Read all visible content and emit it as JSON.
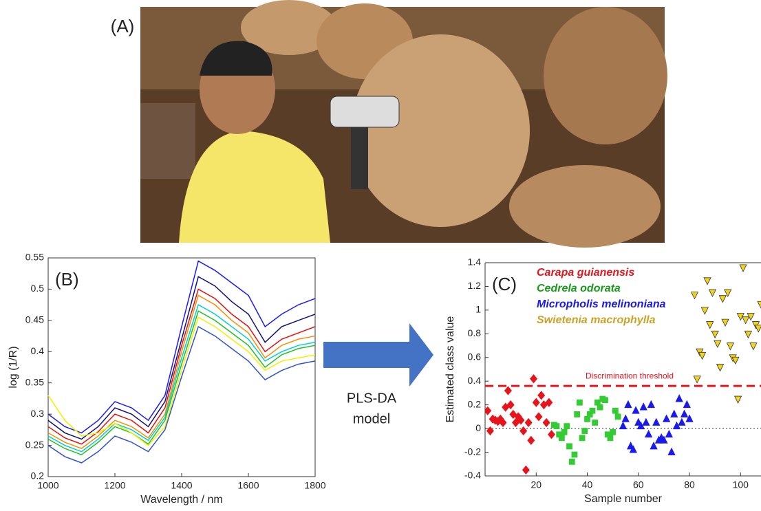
{
  "photo": {
    "label": "(A)"
  },
  "arrow": {
    "label": [
      "PLS-DA",
      "model"
    ]
  },
  "chart_data": [
    {
      "type": "line",
      "panel_label": "(B)",
      "x_label": "Wavelength / nm",
      "y_label": "log (1/R)",
      "x": [
        1000,
        1050,
        1100,
        1150,
        1200,
        1250,
        1300,
        1350,
        1400,
        1450,
        1500,
        1550,
        1600,
        1650,
        1700,
        1750,
        1800
      ],
      "xlim": [
        1000,
        1800
      ],
      "xticks": [
        1000,
        1200,
        1400,
        1600,
        1800
      ],
      "ylim": [
        0.2,
        0.55
      ],
      "yticks": [
        0.2,
        0.25,
        0.3,
        0.35,
        0.4,
        0.45,
        0.5,
        0.55
      ],
      "series": [
        {
          "color": "#1a1aff",
          "values": [
            0.3,
            0.28,
            0.27,
            0.29,
            0.32,
            0.31,
            0.29,
            0.33,
            0.44,
            0.545,
            0.53,
            0.51,
            0.49,
            0.44,
            0.46,
            0.475,
            0.485
          ]
        },
        {
          "color": "#10107a",
          "values": [
            0.29,
            0.27,
            0.26,
            0.28,
            0.31,
            0.3,
            0.28,
            0.32,
            0.42,
            0.52,
            0.505,
            0.48,
            0.46,
            0.415,
            0.44,
            0.45,
            0.46
          ]
        },
        {
          "color": "#e01010",
          "values": [
            0.28,
            0.262,
            0.252,
            0.272,
            0.3,
            0.29,
            0.27,
            0.31,
            0.41,
            0.5,
            0.485,
            0.46,
            0.44,
            0.4,
            0.42,
            0.43,
            0.44
          ]
        },
        {
          "color": "#ff8c00",
          "values": [
            0.27,
            0.255,
            0.245,
            0.265,
            0.29,
            0.28,
            0.262,
            0.3,
            0.4,
            0.49,
            0.475,
            0.45,
            0.43,
            0.39,
            0.41,
            0.42,
            0.425
          ]
        },
        {
          "color": "#00d0d0",
          "values": [
            0.265,
            0.25,
            0.24,
            0.26,
            0.285,
            0.275,
            0.258,
            0.295,
            0.39,
            0.475,
            0.46,
            0.44,
            0.42,
            0.385,
            0.4,
            0.41,
            0.415
          ]
        },
        {
          "color": "#22c022",
          "values": [
            0.26,
            0.245,
            0.235,
            0.255,
            0.28,
            0.27,
            0.252,
            0.29,
            0.38,
            0.465,
            0.45,
            0.43,
            0.41,
            0.375,
            0.395,
            0.405,
            0.41
          ]
        },
        {
          "color": "#f0f000",
          "values": [
            0.33,
            0.29,
            0.265,
            0.27,
            0.285,
            0.27,
            0.25,
            0.28,
            0.37,
            0.455,
            0.44,
            0.42,
            0.4,
            0.37,
            0.385,
            0.39,
            0.395
          ]
        },
        {
          "color": "#3050d0",
          "values": [
            0.25,
            0.232,
            0.222,
            0.24,
            0.265,
            0.255,
            0.24,
            0.275,
            0.36,
            0.44,
            0.425,
            0.405,
            0.385,
            0.355,
            0.37,
            0.38,
            0.385
          ]
        }
      ]
    },
    {
      "type": "scatter",
      "panel_label": "(C)",
      "x_label": "Sample number",
      "y_label": "Estimated class value",
      "xlim": [
        0,
        108
      ],
      "xticks": [
        20,
        40,
        60,
        80,
        100
      ],
      "ylim": [
        -0.4,
        1.4
      ],
      "yticks": [
        -0.4,
        -0.2,
        0,
        0.2,
        0.4,
        0.6,
        0.8,
        1,
        1.2,
        1.4
      ],
      "threshold": {
        "value": 0.36,
        "label": "Discrimination threshold",
        "color": "#e8141c"
      },
      "zero_line": 0,
      "series": [
        {
          "name": "Carapa guianensis",
          "color": "#e8141c",
          "label_color": "#e8141c",
          "marker": "diamond",
          "x": [
            1,
            2,
            3,
            4,
            5,
            6,
            7,
            8,
            9,
            10,
            11,
            12,
            13,
            14,
            15,
            16,
            17,
            18,
            19,
            20,
            21,
            22,
            23,
            24,
            25,
            26
          ],
          "values": [
            0.15,
            -0.02,
            0.08,
            0.07,
            0.06,
            0.08,
            0.05,
            0.18,
            0.32,
            0.2,
            0.12,
            0.05,
            0.1,
            0.07,
            -0.02,
            -0.35,
            0.05,
            -0.1,
            0.42,
            0.22,
            0.1,
            0.28,
            0.2,
            0.05,
            0.22,
            -0.05
          ]
        },
        {
          "name": "Cedrela odorata",
          "color": "#33cc33",
          "label_color": "#1a9a1a",
          "marker": "square",
          "x": [
            27,
            28,
            29,
            30,
            31,
            32,
            33,
            34,
            35,
            36,
            37,
            38,
            39,
            40,
            41,
            42,
            43,
            44,
            45,
            46,
            47,
            48,
            49,
            50,
            51,
            52
          ],
          "values": [
            0.03,
            0.02,
            -0.05,
            -0.08,
            -0.03,
            0.02,
            -0.15,
            -0.28,
            -0.22,
            0.12,
            0.22,
            -0.08,
            -0.02,
            0.08,
            0.12,
            0.15,
            0.05,
            0.22,
            0.18,
            0.25,
            0.24,
            -0.05,
            -0.08,
            -0.03,
            0.15,
            0.1
          ]
        },
        {
          "name": "Micropholis melinoniana",
          "color": "#1a1aee",
          "label_color": "#1a1aee",
          "marker": "triangle",
          "x": [
            54,
            55,
            56,
            57,
            58,
            59,
            60,
            61,
            62,
            63,
            64,
            65,
            66,
            67,
            68,
            69,
            70,
            71,
            72,
            73,
            74,
            75,
            76,
            77,
            78,
            79,
            80
          ],
          "values": [
            0.02,
            0.08,
            0.2,
            -0.15,
            -0.18,
            0.15,
            0.05,
            0.02,
            0.18,
            0.05,
            -0.05,
            0.2,
            -0.15,
            0.05,
            -0.1,
            -0.08,
            -0.1,
            0.08,
            -0.05,
            -0.2,
            0.12,
            0.02,
            0.25,
            0.05,
            0.12,
            0.2,
            0.08
          ]
        },
        {
          "name": "Swietenia macrophylla",
          "color": "#f2d21c",
          "label_color": "#c9a227",
          "marker": "triangle-down",
          "x": [
            82,
            83,
            84,
            85,
            86,
            87,
            88,
            89,
            90,
            91,
            92,
            93,
            94,
            95,
            96,
            97,
            98,
            99,
            100,
            101,
            102,
            103,
            104,
            105,
            106,
            107,
            108
          ],
          "values": [
            1.13,
            0.42,
            0.65,
            0.62,
            1.0,
            1.25,
            0.88,
            1.15,
            0.8,
            0.72,
            0.52,
            1.1,
            0.9,
            1.15,
            0.7,
            0.6,
            0.58,
            0.25,
            0.95,
            1.36,
            0.92,
            0.8,
            0.95,
            0.7,
            0.88,
            0.85,
            1.05
          ]
        }
      ]
    }
  ]
}
